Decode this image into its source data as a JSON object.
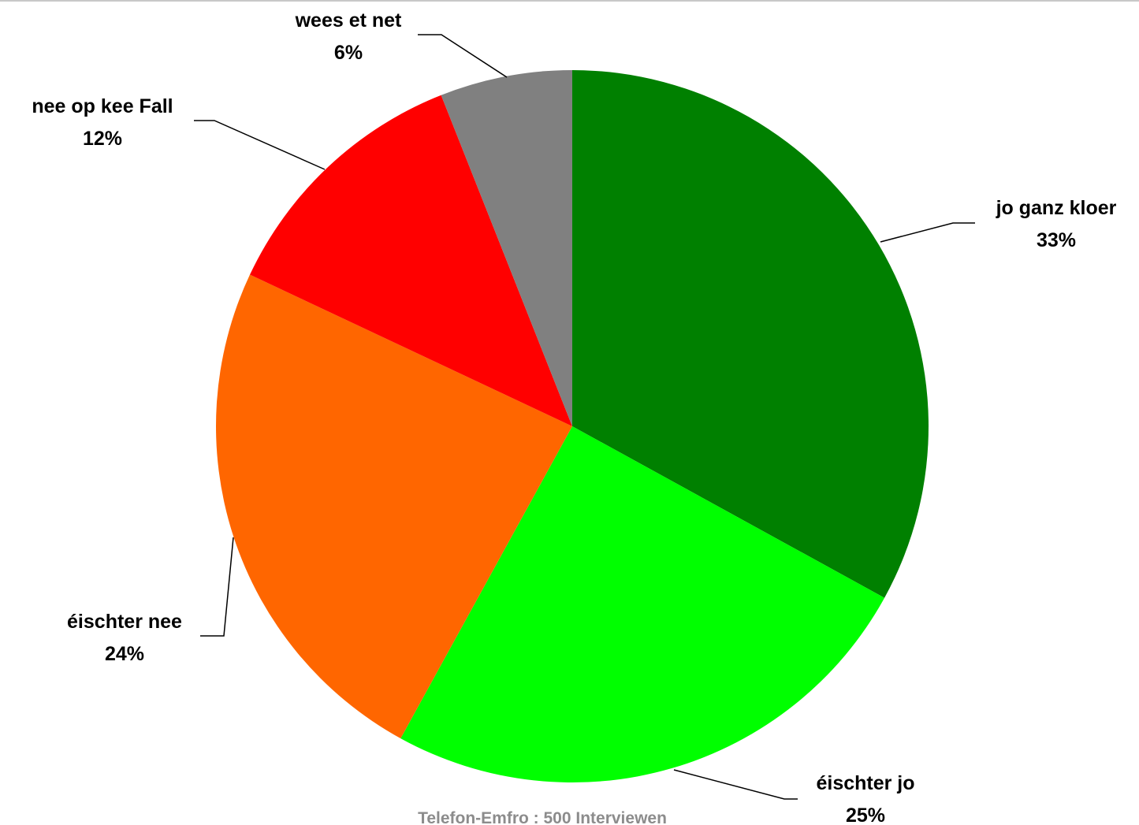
{
  "chart_data": {
    "type": "pie",
    "start_angle": "12 o'clock, clockwise",
    "slices": [
      {
        "label": "jo ganz kloer",
        "value": 33,
        "display": "33%",
        "color": "#008000"
      },
      {
        "label": "éischter jo",
        "value": 25,
        "display": "25%",
        "color": "#00ff00"
      },
      {
        "label": "éischter nee",
        "value": 24,
        "display": "24%",
        "color": "#ff6600"
      },
      {
        "label": "nee op kee Fall",
        "value": 12,
        "display": "12%",
        "color": "#ff0000"
      },
      {
        "label": "wees et net",
        "value": 6,
        "display": "6%",
        "color": "#808080"
      }
    ],
    "footnote": "Telefon-Emfro : 500 Interviewen"
  }
}
